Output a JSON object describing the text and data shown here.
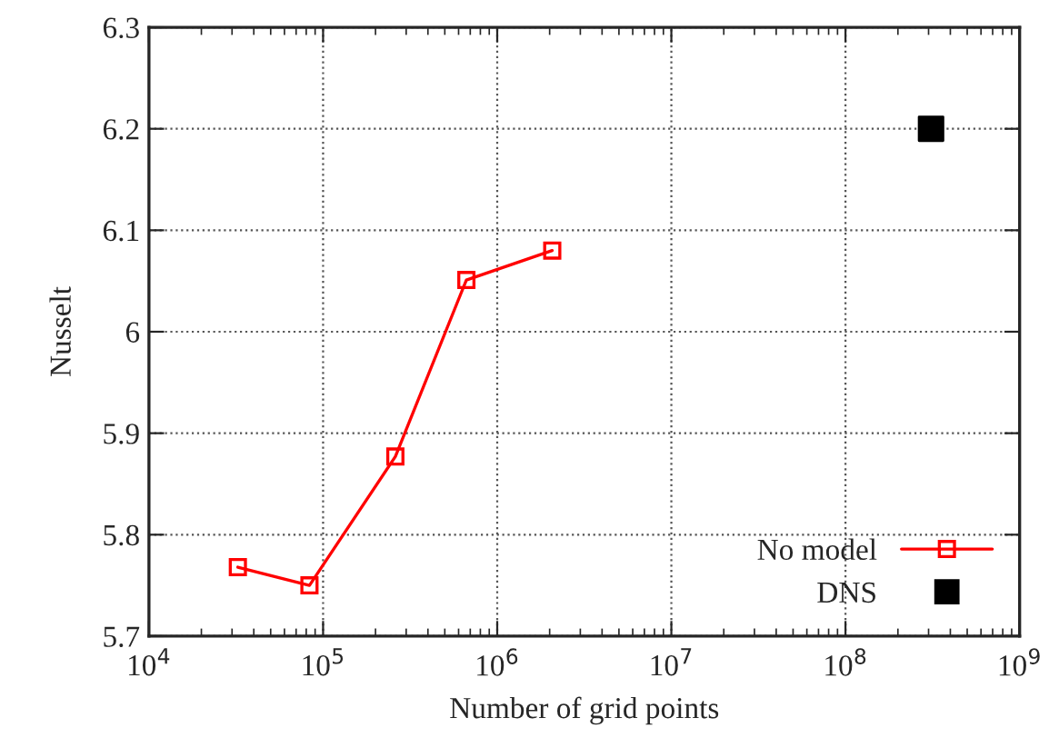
{
  "chart_data": {
    "type": "line",
    "xlabel": "Number of grid points",
    "ylabel": "Nusselt",
    "log": "x",
    "grid": true,
    "legend": "bottom right",
    "xlim": [
      10000,
      1000000000
    ],
    "xticks": [
      {
        "value": 10000,
        "label": "10$^{4}$"
      },
      {
        "value": 100000,
        "label": "10$^{5}$"
      },
      {
        "value": 1000000,
        "label": "10$^{6}$"
      },
      {
        "value": 10000000,
        "label": "10$^{7}$"
      },
      {
        "value": 100000000,
        "label": "10$^{8}$"
      },
      {
        "value": 1000000000,
        "label": "10$^{9}$"
      }
    ],
    "ylim": [
      5.7,
      6.3
    ],
    "yticks": [
      5.7,
      5.8,
      5.9,
      6,
      6.1,
      6.2,
      6.3
    ],
    "series": [
      {
        "name": "No model",
        "color": "#ff0000",
        "marker": "square",
        "x": [
          32400,
          83500,
          260000,
          665000,
          2070000
        ],
        "values": [
          5.768,
          5.75,
          5.877,
          6.051,
          6.08
        ]
      },
      {
        "name": "DNS",
        "type": "scatter",
        "color": "#000000",
        "marker": "square",
        "x": [
          310000000
        ],
        "values": [
          6.2
        ]
      }
    ]
  }
}
